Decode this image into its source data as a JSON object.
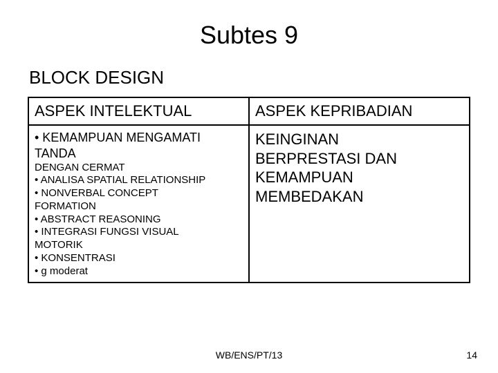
{
  "title": "Subtes 9",
  "subtitle": "BLOCK DESIGN",
  "table": {
    "header_left": "ASPEK INTELEKTUAL",
    "header_right": "ASPEK KEPRIBADIAN",
    "left_lines": [
      "• KEMAMPUAN MENGAMATI TANDA",
      "DENGAN CERMAT",
      "• ANALISA SPATIAL RELATIONSHIP",
      "• NONVERBAL CONCEPT",
      "FORMATION",
      "• ABSTRACT REASONING",
      "• INTEGRASI FUNGSI VISUAL",
      "MOTORIK",
      "• KONSENTRASI",
      "• g moderat"
    ],
    "right_lines": [
      "KEINGINAN",
      "BERPRESTASI DAN",
      "KEMAMPUAN",
      "MEMBEDAKAN"
    ]
  },
  "footer": "WB/ENS/PT/13",
  "page_number": "14",
  "colors": {
    "background": "#ffffff",
    "text": "#000000",
    "border": "#000000"
  }
}
